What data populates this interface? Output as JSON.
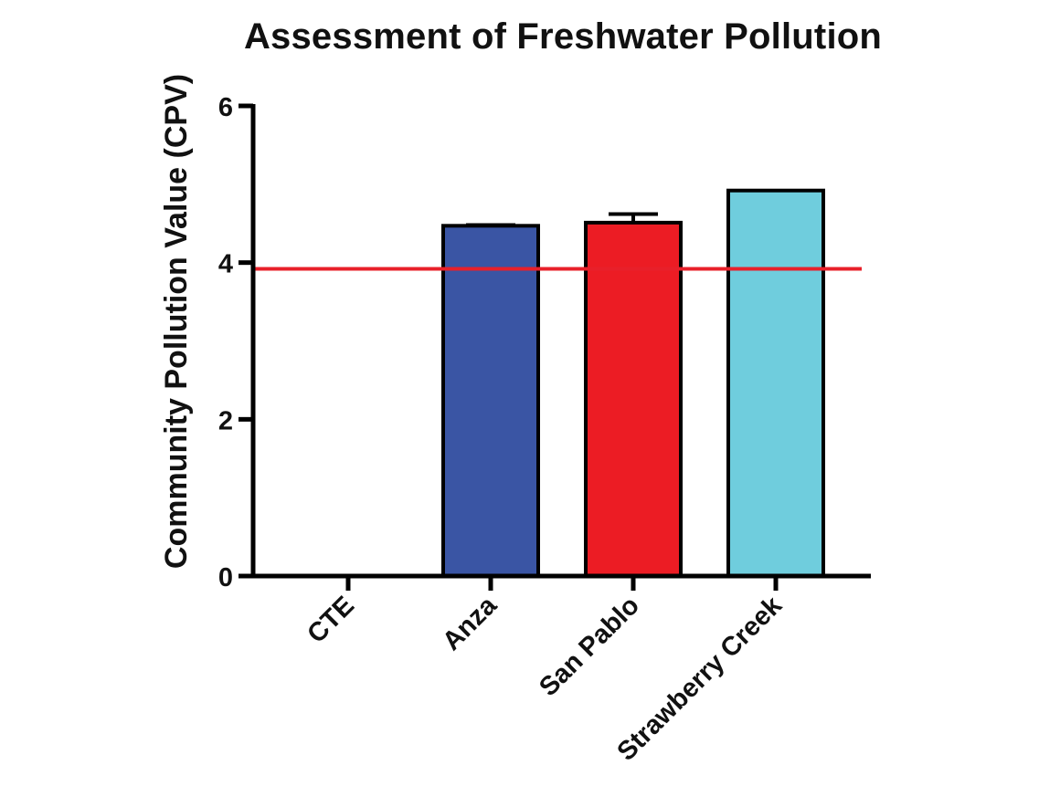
{
  "chart_data": {
    "type": "bar",
    "title": "Assessment of Freshwater Pollution",
    "xlabel": "",
    "ylabel": "Community Pollution Value (CPV)",
    "ylim": [
      0,
      6
    ],
    "yticks": [
      0,
      2,
      4,
      6
    ],
    "categories": [
      "CTE",
      "Anza",
      "San Pablo",
      "Strawberry Creek"
    ],
    "values": [
      0,
      4.47,
      4.51,
      4.92
    ],
    "error_bars": [
      0,
      0.01,
      0.11,
      0
    ],
    "bar_colors": [
      "#ffffff",
      "#3a55a4",
      "#ec1c24",
      "#6fcddd"
    ],
    "reference_line": {
      "value": 3.92,
      "color": "#e8202a"
    },
    "grid": false,
    "legend": "none"
  }
}
